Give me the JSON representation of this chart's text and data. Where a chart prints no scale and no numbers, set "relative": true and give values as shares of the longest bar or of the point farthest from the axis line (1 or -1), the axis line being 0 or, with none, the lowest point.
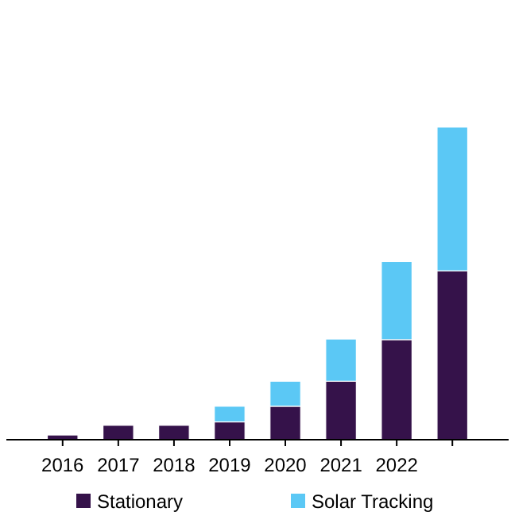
{
  "chart_data": {
    "type": "bar",
    "stacked": true,
    "relative": true,
    "legend": "bottom",
    "categories": [
      "2016",
      "2017",
      "2018",
      "2019",
      "2020",
      "2021",
      "2022",
      null
    ],
    "series": [
      {
        "name": "Stationary",
        "color": "#35124a",
        "values": [
          0.015,
          0.046,
          0.046,
          0.057,
          0.107,
          0.187,
          0.32,
          0.54
        ]
      },
      {
        "name": "Solar Tracking",
        "color": "#5bc8f5",
        "values": [
          0,
          0,
          0,
          0.05,
          0.08,
          0.135,
          0.25,
          0.46
        ]
      }
    ]
  }
}
